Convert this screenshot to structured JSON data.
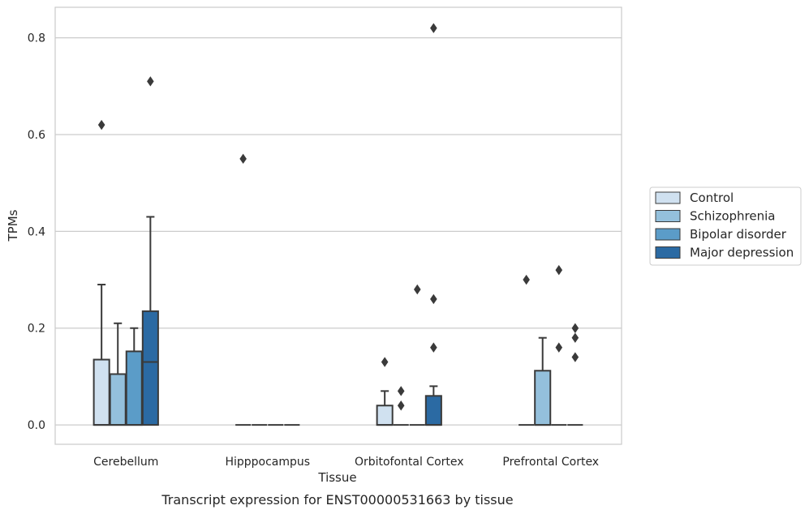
{
  "chart_data": {
    "type": "boxplot",
    "caption": "Transcript expression for ENST00000531663 by tissue",
    "xlabel": "Tissue",
    "ylabel": "TPMs",
    "ylim": [
      -0.04,
      0.863
    ],
    "yticks": [
      0.0,
      0.2,
      0.4,
      0.6,
      0.8
    ],
    "ytick_labels": [
      "0.0",
      "0.2",
      "0.4",
      "0.6",
      "0.8"
    ],
    "grid": "horizontal",
    "legend_position": "right",
    "categories": [
      "Cerebellum",
      "Hipppocampus",
      "Orbitofontal Cortex",
      "Prefrontal Cortex"
    ],
    "series": [
      {
        "name": "Control",
        "color": "#d0e1f0",
        "boxes": [
          {
            "q1": 0.0,
            "median": 0.0,
            "q3": 0.135,
            "whisker_low": 0.0,
            "whisker_high": 0.29,
            "outliers": [
              0.62
            ]
          },
          {
            "q1": 0.0,
            "median": 0.0,
            "q3": 0.0,
            "whisker_low": 0.0,
            "whisker_high": 0.0,
            "outliers": [
              0.55
            ]
          },
          {
            "q1": 0.0,
            "median": 0.0,
            "q3": 0.04,
            "whisker_low": 0.0,
            "whisker_high": 0.07,
            "outliers": [
              0.13
            ]
          },
          {
            "q1": 0.0,
            "median": 0.0,
            "q3": 0.0,
            "whisker_low": 0.0,
            "whisker_high": 0.0,
            "outliers": [
              0.3
            ]
          }
        ]
      },
      {
        "name": "Schizophrenia",
        "color": "#94c0dc",
        "boxes": [
          {
            "q1": 0.0,
            "median": 0.0,
            "q3": 0.105,
            "whisker_low": 0.0,
            "whisker_high": 0.21,
            "outliers": []
          },
          {
            "q1": 0.0,
            "median": 0.0,
            "q3": 0.0,
            "whisker_low": 0.0,
            "whisker_high": 0.0,
            "outliers": []
          },
          {
            "q1": 0.0,
            "median": 0.0,
            "q3": 0.0,
            "whisker_low": 0.0,
            "whisker_high": 0.0,
            "outliers": [
              0.04,
              0.07
            ]
          },
          {
            "q1": 0.0,
            "median": 0.0,
            "q3": 0.112,
            "whisker_low": 0.0,
            "whisker_high": 0.18,
            "outliers": []
          }
        ]
      },
      {
        "name": "Bipolar disorder",
        "color": "#5b9cc8",
        "boxes": [
          {
            "q1": 0.0,
            "median": 0.0,
            "q3": 0.152,
            "whisker_low": 0.0,
            "whisker_high": 0.2,
            "outliers": []
          },
          {
            "q1": 0.0,
            "median": 0.0,
            "q3": 0.0,
            "whisker_low": 0.0,
            "whisker_high": 0.0,
            "outliers": []
          },
          {
            "q1": 0.0,
            "median": 0.0,
            "q3": 0.0,
            "whisker_low": 0.0,
            "whisker_high": 0.0,
            "outliers": [
              0.28
            ]
          },
          {
            "q1": 0.0,
            "median": 0.0,
            "q3": 0.0,
            "whisker_low": 0.0,
            "whisker_high": 0.0,
            "outliers": [
              0.32,
              0.16
            ]
          }
        ]
      },
      {
        "name": "Major depression",
        "color": "#2b6aa3",
        "boxes": [
          {
            "q1": 0.0,
            "median": 0.13,
            "q3": 0.235,
            "whisker_low": 0.0,
            "whisker_high": 0.43,
            "outliers": [
              0.71
            ]
          },
          {
            "q1": 0.0,
            "median": 0.0,
            "q3": 0.0,
            "whisker_low": 0.0,
            "whisker_high": 0.0,
            "outliers": []
          },
          {
            "q1": 0.0,
            "median": 0.0,
            "q3": 0.06,
            "whisker_low": 0.0,
            "whisker_high": 0.08,
            "outliers": [
              0.82,
              0.26,
              0.16
            ]
          },
          {
            "q1": 0.0,
            "median": 0.0,
            "q3": 0.0,
            "whisker_low": 0.0,
            "whisker_high": 0.0,
            "outliers": [
              0.2,
              0.18,
              0.14
            ]
          }
        ]
      }
    ]
  }
}
